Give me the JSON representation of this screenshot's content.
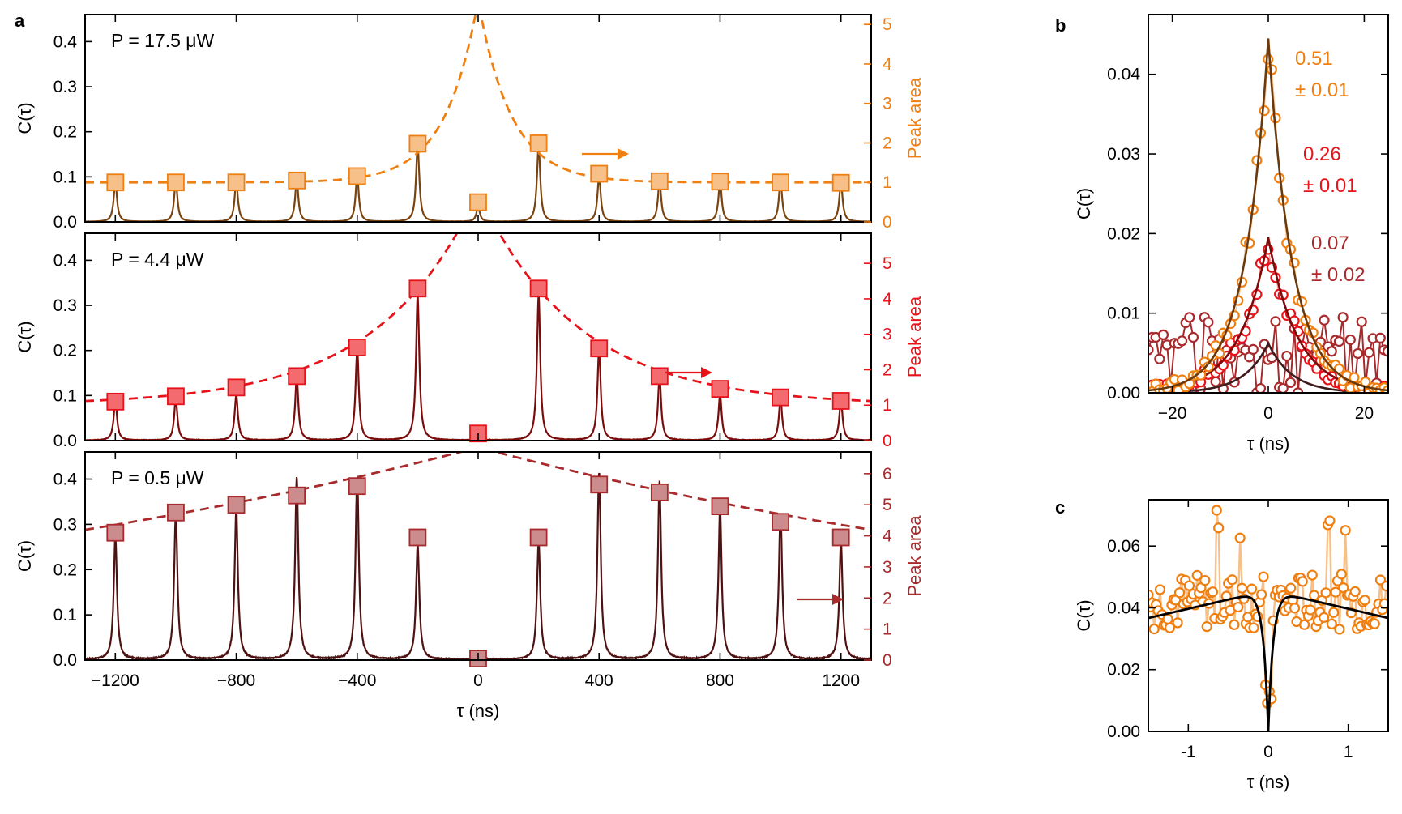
{
  "panel_labels": {
    "a": "a",
    "b": "b",
    "c": "c"
  },
  "chart_data": [
    {
      "id": "a1",
      "type": "line+scatter",
      "annotation": "P = 17.5 μW",
      "color": "#f07f12",
      "marker_fill": "#f8c089",
      "line_color": "#7a4410",
      "xlim": [
        -1300,
        1300
      ],
      "ylim": [
        0,
        0.46
      ],
      "y2lim": [
        0,
        5.25
      ],
      "ylabel": "C(τ)",
      "y2label": "Peak area",
      "yticks": [
        0.0,
        0.1,
        0.2,
        0.3,
        0.4
      ],
      "y2ticks": [
        0,
        1,
        2,
        3,
        4,
        5
      ],
      "peak_positions": [
        -1200,
        -1000,
        -800,
        -600,
        -400,
        -200,
        0,
        200,
        400,
        600,
        800,
        1000,
        1200
      ],
      "peak_heights": [
        0.09,
        0.09,
        0.09,
        0.092,
        0.1,
        0.17,
        0.035,
        0.17,
        0.1,
        0.09,
        0.09,
        0.09,
        0.09
      ],
      "peak_areas": [
        1.0,
        1.0,
        1.0,
        1.05,
        1.16,
        1.98,
        0.5,
        1.99,
        1.22,
        1.03,
        1.02,
        1.0,
        0.99
      ],
      "fit": {
        "baseline": 1.0,
        "amplitude": 4.6,
        "decay": 110
      }
    },
    {
      "id": "a2",
      "type": "line+scatter",
      "annotation": "P = 4.4 μW",
      "color": "#e8131a",
      "marker_fill": "#f36b6e",
      "line_color": "#7b0c0c",
      "xlim": [
        -1300,
        1300
      ],
      "ylim": [
        0,
        0.46
      ],
      "y2lim": [
        0,
        5.85
      ],
      "ylabel": "C(τ)",
      "y2label": "Peak area",
      "yticks": [
        0.0,
        0.1,
        0.2,
        0.3,
        0.4
      ],
      "y2ticks": [
        0,
        1,
        2,
        3,
        4,
        5
      ],
      "peak_positions": [
        -1200,
        -1000,
        -800,
        -600,
        -400,
        -200,
        0,
        200,
        400,
        600,
        800,
        1000,
        1200
      ],
      "peak_heights": [
        0.09,
        0.09,
        0.1,
        0.14,
        0.2,
        0.32,
        0.01,
        0.32,
        0.2,
        0.14,
        0.1,
        0.09,
        0.09
      ],
      "peak_areas": [
        1.1,
        1.25,
        1.5,
        1.82,
        2.63,
        4.29,
        0.2,
        4.29,
        2.6,
        1.82,
        1.46,
        1.22,
        1.12
      ],
      "fit": {
        "baseline": 1.0,
        "amplitude": 6.0,
        "decay": 330
      }
    },
    {
      "id": "a3",
      "type": "line+scatter",
      "annotation": "P = 0.5 μW",
      "color": "#a82a2c",
      "marker_fill": "#cc8b8c",
      "line_color": "#4e1212",
      "xlim": [
        -1300,
        1300
      ],
      "ylim": [
        0,
        0.46
      ],
      "y2lim": [
        0,
        6.7
      ],
      "ylabel": "C(τ)",
      "y2label": "Peak area",
      "yticks": [
        0.0,
        0.1,
        0.2,
        0.3,
        0.4
      ],
      "y2ticks": [
        0,
        1,
        2,
        3,
        4,
        5,
        6
      ],
      "xticks": [
        -1200,
        -800,
        -400,
        0,
        400,
        800,
        1200
      ],
      "xticklabels": [
        "−1200",
        "−800",
        "−400",
        "0",
        "400",
        "800",
        "1200"
      ],
      "xlabel": "τ (ns)",
      "peak_positions": [
        -1200,
        -1000,
        -800,
        -600,
        -400,
        -200,
        0,
        200,
        400,
        600,
        800,
        1000,
        1200
      ],
      "peak_heights": [
        0.27,
        0.32,
        0.33,
        0.4,
        0.4,
        0.25,
        0.004,
        0.26,
        0.41,
        0.39,
        0.33,
        0.32,
        0.26
      ],
      "peak_areas": [
        4.1,
        4.75,
        5.0,
        5.3,
        5.6,
        3.95,
        0.05,
        3.95,
        5.65,
        5.4,
        4.95,
        4.45,
        3.95
      ],
      "fit": {
        "baseline": 0,
        "amplitude": 6.85,
        "decay": 2650
      }
    },
    {
      "id": "b",
      "type": "scatter+line",
      "xlim": [
        -25,
        25
      ],
      "ylim": [
        0,
        0.0475
      ],
      "xticks": [
        -20,
        0,
        20
      ],
      "xticklabels": [
        "−20",
        "0",
        "20"
      ],
      "yticks": [
        0.0,
        0.01,
        0.02,
        0.03,
        0.04
      ],
      "yticklabels": [
        "0.00",
        "0.01",
        "0.02",
        "0.03",
        "0.04"
      ],
      "xlabel": "τ (ns)",
      "ylabel": "C(τ)",
      "series": [
        {
          "name": "17.5 μW",
          "color": "#f07f12",
          "fit_color": "#6b3a0c",
          "peak": 0.0445,
          "tau": 5.0,
          "noise": 0.0022,
          "floor": 0.0
        },
        {
          "name": "4.4 μW",
          "color": "#e8131a",
          "fit_color": "#7b0c0c",
          "peak": 0.0195,
          "tau": 6.0,
          "noise": 0.0016,
          "floor": 0.0
        },
        {
          "name": "0.5 μW",
          "color": "#a82a2c",
          "fit_color": "#3d1d1d",
          "peak": 0.0062,
          "tau": 5.0,
          "noise": 0.0,
          "floor": 0.0
        }
      ],
      "annotations": [
        {
          "line1": "0.51",
          "line2": "± 0.01",
          "color": "#f07f12"
        },
        {
          "line1": "0.26",
          "line2": "± 0.01",
          "color": "#e8131a"
        },
        {
          "line1": "0.07",
          "line2": "± 0.02",
          "color": "#a82a2c"
        }
      ]
    },
    {
      "id": "c",
      "type": "scatter+line",
      "xlim": [
        -1.5,
        1.5
      ],
      "ylim": [
        0,
        0.075
      ],
      "xticks": [
        -1,
        0,
        1
      ],
      "xticklabels": [
        "-1",
        "0",
        "1"
      ],
      "yticks": [
        0.0,
        0.02,
        0.04,
        0.06
      ],
      "yticklabels": [
        "0.00",
        "0.02",
        "0.04",
        "0.06"
      ],
      "xlabel": "τ (ns)",
      "ylabel": "C(τ)",
      "series": [
        {
          "name": "data",
          "color": "#f07f12",
          "line_color": "#f8c089",
          "mean": 0.042,
          "noise": 0.009
        }
      ],
      "fit": {
        "color": "#000000",
        "peak": 0.0445,
        "peak_at": 0.2,
        "slope": 0.006,
        "dip_width": 0.06
      }
    }
  ]
}
